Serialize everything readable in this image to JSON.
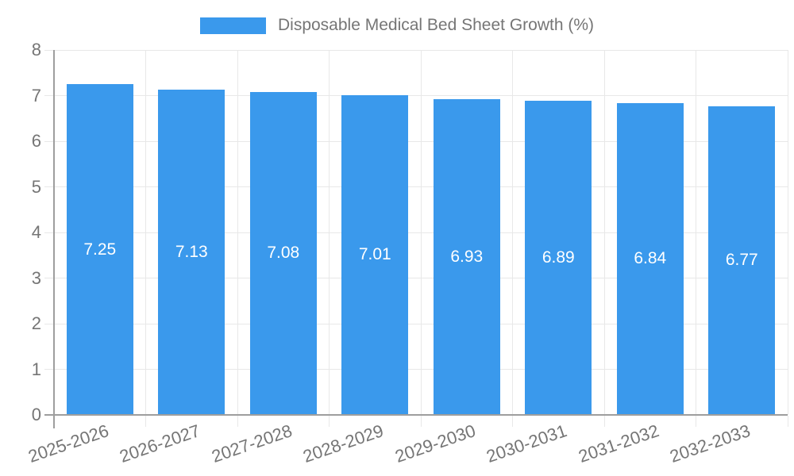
{
  "legend": {
    "label": "Disposable Medical Bed Sheet Growth (%)"
  },
  "colors": {
    "bar": "#3a99ec",
    "axis_line": "#9e9e9e",
    "grid_line": "#e8e8e8",
    "tick_text": "#757575",
    "value_label_text": "#ffffff",
    "background": "#ffffff"
  },
  "chart_data": {
    "type": "bar",
    "title": "Disposable Medical Bed Sheet Growth (%)",
    "categories": [
      "2025-2026",
      "2026-2027",
      "2027-2028",
      "2028-2029",
      "2029-2030",
      "2030-2031",
      "2031-2032",
      "2032-2033"
    ],
    "values": [
      7.25,
      7.13,
      7.08,
      7.01,
      6.93,
      6.89,
      6.84,
      6.77
    ],
    "value_labels": [
      "7.25",
      "7.13",
      "7.08",
      "7.01",
      "6.93",
      "6.89",
      "6.84",
      "6.77"
    ],
    "xlabel": "",
    "ylabel": "",
    "ylim": [
      0,
      8
    ],
    "yticks": [
      0,
      1,
      2,
      3,
      4,
      5,
      6,
      7,
      8
    ],
    "grid": true,
    "legend_position": "top",
    "x_label_rotation_deg": -19
  }
}
